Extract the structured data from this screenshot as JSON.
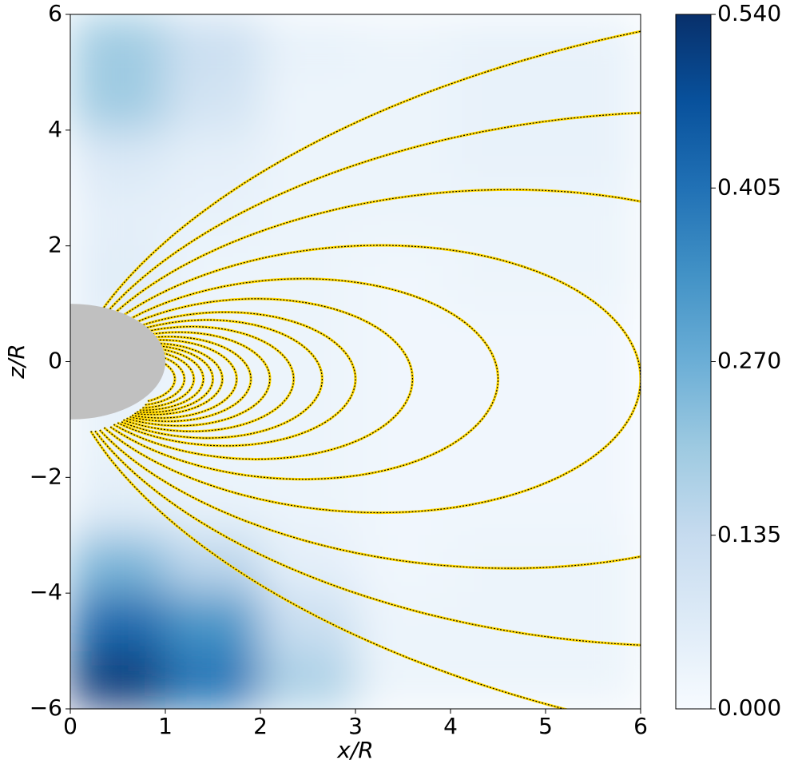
{
  "chart_data": {
    "type": "heatmap",
    "x_label": "x/R",
    "y_label": "z/R",
    "xlim": [
      0,
      6
    ],
    "ylim": [
      -6,
      6
    ],
    "xticks": [
      0,
      1,
      2,
      3,
      4,
      5,
      6
    ],
    "yticks": [
      {
        "value": -6,
        "label": "−6"
      },
      {
        "value": -4,
        "label": "−4"
      },
      {
        "value": -2,
        "label": "−2"
      },
      0,
      2,
      4,
      6
    ],
    "x_edges": [
      0,
      1,
      2,
      3,
      4,
      5,
      6
    ],
    "y_edges": [
      6,
      5,
      4,
      3,
      2,
      1,
      0,
      -1,
      -2,
      -3,
      -4,
      -5,
      -6
    ],
    "values": [
      [
        0.2,
        0.12,
        0.04,
        0.03,
        0.04,
        0.04
      ],
      [
        0.2,
        0.1,
        0.03,
        0.03,
        0.04,
        0.04
      ],
      [
        0.08,
        0.05,
        0.03,
        0.03,
        0.04,
        0.04
      ],
      [
        0.05,
        0.04,
        0.03,
        0.03,
        0.03,
        0.03
      ],
      [
        0.06,
        0.03,
        0.03,
        0.02,
        0.03,
        0.03
      ],
      [
        0.05,
        0.03,
        0.03,
        0.02,
        0.02,
        0.02
      ],
      [
        0.04,
        0.03,
        0.03,
        0.02,
        0.02,
        0.02
      ],
      [
        0.04,
        0.03,
        0.03,
        0.02,
        0.02,
        0.02
      ],
      [
        0.06,
        0.04,
        0.03,
        0.02,
        0.02,
        0.02
      ],
      [
        0.25,
        0.15,
        0.05,
        0.02,
        0.03,
        0.03
      ],
      [
        0.42,
        0.33,
        0.12,
        0.03,
        0.03,
        0.03
      ],
      [
        0.52,
        0.4,
        0.18,
        0.03,
        0.03,
        0.03
      ]
    ],
    "colormap": [
      "#f7fbff",
      "#deebf7",
      "#c6dbef",
      "#9ecae1",
      "#6baed6",
      "#4292c6",
      "#2171b5",
      "#08519c",
      "#08306b"
    ],
    "clim": [
      0,
      0.54
    ],
    "colorbar_ticks": [
      {
        "value": 0,
        "label": "0.000"
      },
      0.135,
      {
        "value": 0.27,
        "label": "0.270"
      },
      0.405,
      {
        "value": 0.54,
        "label": "0.540"
      }
    ],
    "field_lines": {
      "apex_x": [
        1.1,
        1.2,
        1.3,
        1.4,
        1.5,
        1.6,
        1.75,
        1.9,
        2.1,
        2.35,
        2.65,
        3.0,
        3.6,
        4.5,
        6.0,
        8.5,
        12,
        17
      ],
      "apex_z": -0.3,
      "color": "#ffd700",
      "dash_color": "#000000"
    },
    "body": {
      "radius": 1,
      "color": "#c0c0c0"
    }
  }
}
